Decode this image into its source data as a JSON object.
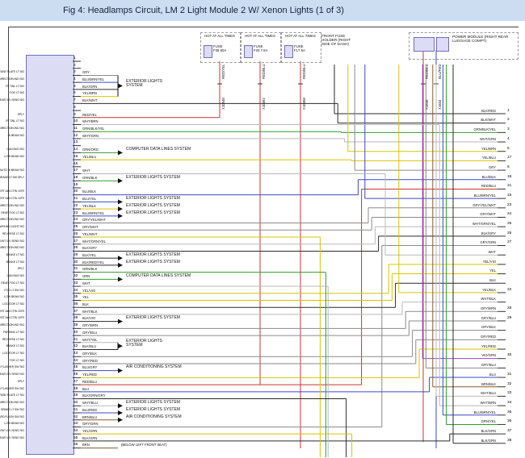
{
  "title": "Fig 4: Headlamps Circuit, LM 2 Light Module 2 W/ Xenon Lights (1 of 3)",
  "palette": {
    "GRY": "#8a8a8a",
    "BLU": "#3a49c8",
    "BLK": "#2a2a2a",
    "YEL": "#d8c400",
    "RED": "#cc3333",
    "GRN": "#2f9e2f",
    "WHT": "#b8b8b8",
    "BRN": "#8a5a2a",
    "VIO": "#9a44bb",
    "ORG": "#e08400"
  },
  "connector": {
    "pins": [
      {
        "pin": "1",
        "signal": "",
        "wire": ""
      },
      {
        "pin": "2",
        "signal": "",
        "wire": ""
      },
      {
        "pin": "3",
        "signal": "LICENSE PLATE LT SIG",
        "wire": "GRY"
      },
      {
        "pin": "4",
        "signal": "LT DIRECTION IND SIG",
        "wire": "BLU/BRN/YEL"
      },
      {
        "pin": "5",
        "signal": "RT TAIL LT SIG",
        "wire": "BLK/GRN"
      },
      {
        "pin": "6",
        "signal": "FOG LT SIG",
        "wire": "YEL/BRN"
      },
      {
        "pin": "7",
        "signal": "REAR LVL SENS SIG",
        "wire": "BLK/WHT"
      },
      {
        "pin": "8",
        "signal": "",
        "wire": ""
      },
      {
        "pin": "9",
        "signal": "SPLY",
        "wire": "RED/YEL"
      },
      {
        "pin": "10",
        "signal": "RT TAIL LT SIG",
        "wire": "WHT/BRN"
      },
      {
        "pin": "11",
        "signal": "RT DIRECTION IND SIG",
        "wire": "GRN/BLK/YEL"
      },
      {
        "pin": "12",
        "signal": "HI BEAM SIG",
        "wire": "WHT/GRN"
      },
      {
        "pin": "13",
        "signal": "",
        "wire": ""
      },
      {
        "pin": "14",
        "signal": "CAN BUS SIG",
        "wire": "GRN/ORG",
        "system": "COMPUTER DATA LINES SYSTEM"
      },
      {
        "pin": "15",
        "signal": "LOW BEAM SIG",
        "wire": "YEL/BLU"
      },
      {
        "pin": "16",
        "signal": "",
        "wire": ""
      },
      {
        "pin": "17",
        "signal": "LED AUTO HI BEAM SIG",
        "wire": "WHT"
      },
      {
        "pin": "18",
        "signal": "BRAKE LT SW SPLY",
        "wire": "GRN/BLK",
        "system": "EXTERIOR LIGHTS SYSTEM"
      },
      {
        "pin": "19",
        "signal": "",
        "wire": ""
      },
      {
        "pin": "20",
        "signal": "VERT AIM CTRL MTR",
        "wire": "BLU/BLK"
      },
      {
        "pin": "21",
        "signal": "VERT AIM CTRL MTR",
        "wire": "BLU/YEL",
        "system": "EXTERIOR LIGHTS SYSTEM"
      },
      {
        "pin": "22",
        "signal": "LT DIRECTION IND SIG",
        "wire": "YEL/BLK",
        "system": "EXTERIOR LIGHTS SYSTEM"
      },
      {
        "pin": "23",
        "signal": "REAR FOG LT SIG",
        "wire": "BLU/BRN/YEL",
        "system": "EXTERIOR LIGHTS SYSTEM"
      },
      {
        "pin": "24",
        "signal": "RT DIRECTION IND SIG",
        "wire": "GRY/YEL/WHT"
      },
      {
        "pin": "25",
        "signal": "PARKING LIGHT SIG",
        "wire": "GRY/WHT"
      },
      {
        "pin": "26",
        "signal": "REVERSE LT SIG",
        "wire": "YEL/WHT"
      },
      {
        "pin": "27",
        "signal": "FRONT LVL SENS SIG",
        "wire": "WHT/GRN/YEL"
      },
      {
        "pin": "28",
        "signal": "DIRECTION IND SIG",
        "wire": "BLK/GRY"
      },
      {
        "pin": "29",
        "signal": "BRAKE LT SIG",
        "wire": "BLK/YEL",
        "system": "EXTERIOR LIGHTS SYSTEM"
      },
      {
        "pin": "30",
        "signal": "BRAKE LT SIG",
        "wire": "BLK/RED/YEL",
        "system": "EXTERIOR LIGHTS SYSTEM"
      },
      {
        "pin": "31",
        "signal": "SPLY",
        "wire": "GRN/BLK"
      },
      {
        "pin": "32",
        "signal": "CAN BUS SIG",
        "wire": "GRN",
        "system": "COMPUTER DATA LINES SYSTEM"
      },
      {
        "pin": "33",
        "signal": "REAR FOG LT SIG",
        "wire": "WHT"
      },
      {
        "pin": "34",
        "signal": "FOG LT SW SIG",
        "wire": "YEL/VIO"
      },
      {
        "pin": "35",
        "signal": "LOW BEAM SIG",
        "wire": "YEL"
      },
      {
        "pin": "36",
        "signal": "LOCATOR LT SIG",
        "wire": "BLK"
      },
      {
        "pin": "37",
        "signal": "VERT AIM CTRL MTR",
        "wire": "WHT/BLK"
      },
      {
        "pin": "38",
        "signal": "VERT AIM CTRL MTR",
        "wire": "BLK/VIO",
        "system": "EXTERIOR LIGHTS SYSTEM"
      },
      {
        "pin": "39",
        "signal": "RT DIRECTION IND SIG",
        "wire": "GRY/BRN"
      },
      {
        "pin": "40",
        "signal": "PARKING LT SIG",
        "wire": "GRY/BLU"
      },
      {
        "pin": "41",
        "signal": "REVERSE LT SIG",
        "wire": "WHT/YEL"
      },
      {
        "pin": "42",
        "signal": "BRAKE LT SIG",
        "wire": "BLK/BLU"
      },
      {
        "pin": "43",
        "signal": "LOCATOR LT SIG",
        "wire": "GRY/BLK"
      },
      {
        "pin": "44",
        "signal": "FOG LT SIG",
        "wire": "GRY/RED"
      },
      {
        "pin": "45",
        "signal": "LED FLASHER SW SIG",
        "wire": "BLU/GRY",
        "system": "AIR CONDITIONING SYSTEM"
      },
      {
        "pin": "46",
        "signal": "REAR LVL SENS SIG",
        "wire": "YEL/RED"
      },
      {
        "pin": "47",
        "signal": "SPLY",
        "wire": "RED/BLU"
      },
      {
        "pin": "48",
        "signal": "LED FLASHER SW SIG",
        "wire": "BLU"
      },
      {
        "pin": "49",
        "signal": "LICENSE PLATE LT SIG",
        "wire": "BLK/GRN/GRY"
      },
      {
        "pin": "50",
        "signal": "LT DIRECTION IND SIG",
        "wire": "WHT/BLU",
        "system": "EXTERIOR LIGHTS SYSTEM"
      },
      {
        "pin": "51",
        "signal": "BRAKE LT SW SIG",
        "wire": "BLU/RED",
        "system": "EXTERIOR LIGHTS SYSTEM"
      },
      {
        "pin": "52",
        "signal": "HAZARD FLASH SW SIG",
        "wire": "BRN/BLU",
        "system": "AIR CONDITIONING SYSTEM"
      },
      {
        "pin": "53",
        "signal": "LOW BEAM SIG",
        "wire": "GRY/GRN"
      },
      {
        "pin": "54",
        "signal": "FRONT LVL SENS SIG",
        "wire": "YEL/GRN"
      },
      {
        "pin": "55",
        "signal": "REAR LVL SENS SIG",
        "wire": "BLK/GRN"
      },
      {
        "pin": "56",
        "signal": "",
        "wire": "BRN",
        "note": "(BELOW LEFT FRONT SEAT)"
      }
    ],
    "groups": [
      {
        "pins": [
          "3",
          "4",
          "5",
          "6"
        ],
        "label": "EXTERIOR LIGHTS SYSTEM"
      },
      {
        "pins": [
          "41",
          "42"
        ],
        "label": "EXTERIOR LIGHTS SYSTEM"
      }
    ]
  },
  "right_edge": {
    "rows": [
      {
        "wire": "BLK/RED",
        "pin": "1"
      },
      {
        "wire": "BLK/WHT",
        "pin": "2"
      },
      {
        "wire": "GRN/BLK/YEL",
        "pin": "3"
      },
      {
        "wire": "WHT/GRN",
        "pin": "4"
      },
      {
        "wire": "YEL/BRN",
        "pin": "5"
      },
      {
        "wire": "YEL/BLU",
        "pin": "17"
      },
      {
        "wire": "GRY",
        "pin": "6"
      },
      {
        "wire": "BLU/BLK",
        "pin": "18"
      },
      {
        "wire": "RED/BLU",
        "pin": "21"
      },
      {
        "wire": "BLU/BRN/YEL",
        "pin": "19"
      },
      {
        "wire": "GRY/YEL/WHT",
        "pin": "23"
      },
      {
        "wire": "GRY/WHT",
        "pin": "24"
      },
      {
        "wire": "WHT/GRN/YEL",
        "pin": "25"
      },
      {
        "wire": "BLK/GRY",
        "pin": "26"
      },
      {
        "wire": "GRY/GRN",
        "pin": "27"
      },
      {
        "wire": "WHT",
        "pin": ""
      },
      {
        "wire": "YEL/VIO",
        "pin": ""
      },
      {
        "wire": "YEL",
        "pin": ""
      },
      {
        "wire": "BLK",
        "pin": ""
      },
      {
        "wire": "YEL/BLK",
        "pin": "22"
      },
      {
        "wire": "WHT/BLK",
        "pin": ""
      },
      {
        "wire": "GRY/BRN",
        "pin": "28"
      },
      {
        "wire": "GRY/BLU",
        "pin": "29"
      },
      {
        "wire": "GRY/BLK",
        "pin": ""
      },
      {
        "wire": "GRY/RED",
        "pin": ""
      },
      {
        "wire": "YEL/RED",
        "pin": ""
      },
      {
        "wire": "VIO/GRN",
        "pin": "30"
      },
      {
        "wire": "GRY/BLU",
        "pin": ""
      },
      {
        "wire": "BLU",
        "pin": "31"
      },
      {
        "wire": "BRN/BLK",
        "pin": "32"
      },
      {
        "wire": "WHT/BLU",
        "pin": "33"
      },
      {
        "wire": "WHT/BRN",
        "pin": "34"
      },
      {
        "wire": "BLU/BRN/YEL",
        "pin": "35"
      },
      {
        "wire": "GRN/YEL",
        "pin": "36"
      },
      {
        "wire": "BLK/GRN",
        "pin": "37"
      },
      {
        "wire": "BLK/GRN",
        "pin": "38"
      }
    ]
  },
  "fuse_area": {
    "fuses": [
      {
        "header": "HOT AT ALL TIMES",
        "label": "FUSE",
        "id": "F38",
        "amps": "50A",
        "wire": "RED/YEL",
        "code": "X10548"
      },
      {
        "header": "HOT AT ALL TIMES",
        "label": "FUSE",
        "id": "F33",
        "amps": "7.5A",
        "wire": "RED/BLU",
        "code": "X10492"
      },
      {
        "header": "HOT AT ALL TIMES",
        "label": "FUSE",
        "id": "F17",
        "amps": "5A",
        "wire": "RED/BLU",
        "code": "X10458"
      }
    ],
    "holder_note": "FRONT FUSE HOLDER (RIGHT SIDE OF DASH)"
  },
  "power_module": {
    "label": "POWER MODULE (RIGHT REAR LUGGAGE COMPT)",
    "risers": [
      {
        "wire": "RED/BLU",
        "code": "X1835"
      },
      {
        "wire": "BLU/RED",
        "code": "X1834"
      }
    ]
  }
}
